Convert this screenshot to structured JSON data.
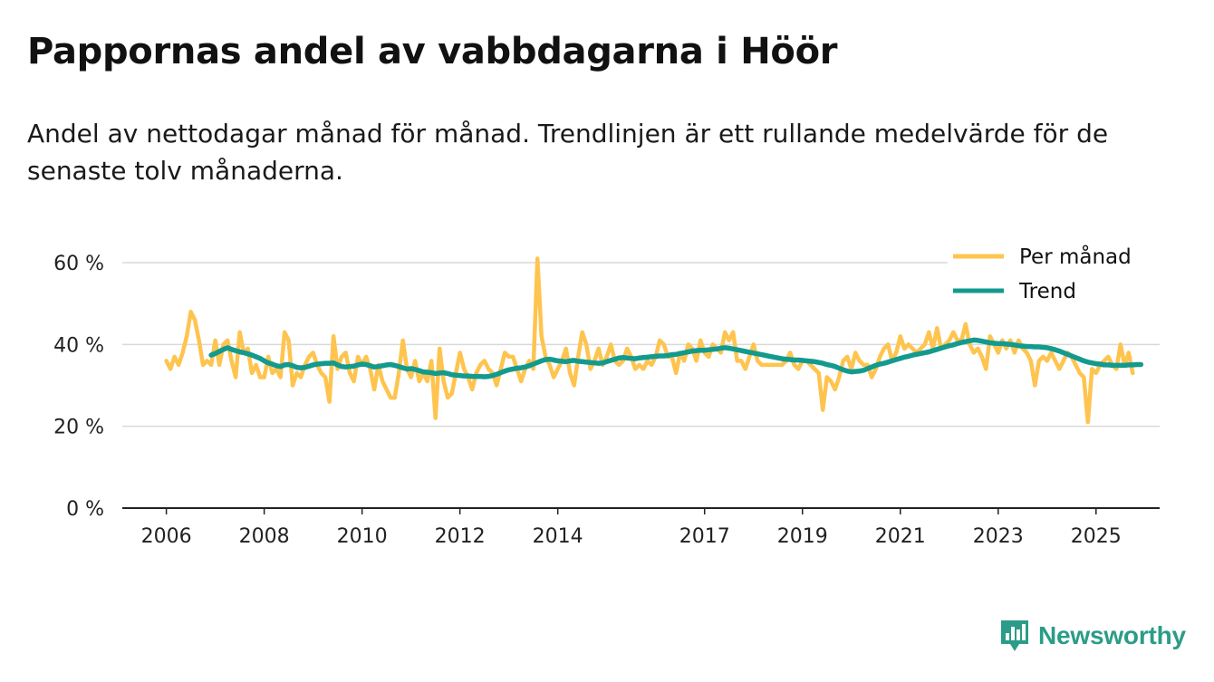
{
  "header": {
    "title": "Pappornas andel av vabbdagarna i Höör",
    "subtitle": "Andel av nettodagar månad för månad. Trendlinjen är ett rullande medelvärde för de senaste tolv månaderna."
  },
  "brand": {
    "name": "Newsworthy",
    "icon": "newsworthy-logo-icon",
    "color": "#2b9c87"
  },
  "colors": {
    "monthly": "#fec44f",
    "trend": "#139a8e",
    "grid": "#d9d9d9",
    "axis": "#222222"
  },
  "chart_data": {
    "type": "line",
    "title": "Pappornas andel av vabbdagarna i Höör",
    "xlabel": "",
    "ylabel": "",
    "x_start": "2006-01",
    "x_tick_years": [
      2006,
      2008,
      2010,
      2012,
      2014,
      2017,
      2019,
      2021,
      2023,
      2025
    ],
    "x_range": [
      2005.1,
      2026.3
    ],
    "ylim": [
      0,
      65
    ],
    "y_ticks": [
      0,
      20,
      40,
      60
    ],
    "y_tick_labels": [
      "0 %",
      "20 %",
      "40 %",
      "60 %"
    ],
    "grid": true,
    "legend": {
      "position": "top-right",
      "entries": [
        "Per månad",
        "Trend"
      ]
    },
    "series": [
      {
        "name": "Per månad",
        "values": [
          36,
          34,
          37,
          35,
          38,
          42,
          48,
          46,
          41,
          35,
          36,
          35,
          41,
          35,
          40,
          41,
          36,
          32,
          43,
          38,
          39,
          33,
          35,
          32,
          32,
          37,
          33,
          34,
          32,
          43,
          41,
          30,
          33,
          32,
          35,
          37,
          38,
          35,
          33,
          32,
          26,
          42,
          34,
          37,
          38,
          33,
          31,
          37,
          35,
          37,
          34,
          29,
          35,
          31,
          29,
          27,
          27,
          33,
          41,
          34,
          32,
          36,
          31,
          33,
          31,
          36,
          22,
          39,
          31,
          27,
          28,
          33,
          38,
          34,
          32,
          29,
          33,
          35,
          36,
          34,
          33,
          30,
          34,
          38,
          37,
          37,
          34,
          31,
          34,
          36,
          34,
          61,
          42,
          37,
          35,
          32,
          34,
          36,
          39,
          33,
          30,
          37,
          43,
          40,
          34,
          36,
          39,
          35,
          37,
          40,
          36,
          35,
          36,
          39,
          37,
          34,
          35,
          34,
          36,
          35,
          37,
          41,
          40,
          37,
          37,
          33,
          38,
          36,
          40,
          39,
          36,
          41,
          38,
          37,
          40,
          39,
          38,
          43,
          41,
          43,
          36,
          36,
          34,
          37,
          40,
          36,
          35,
          35,
          35,
          35,
          35,
          35,
          36,
          38,
          35,
          34,
          36,
          36,
          35,
          34,
          33,
          24,
          32,
          31,
          29,
          32,
          36,
          37,
          34,
          38,
          36,
          35,
          35,
          32,
          34,
          37,
          39,
          40,
          36,
          38,
          42,
          39,
          40,
          39,
          38,
          39,
          40,
          43,
          39,
          44,
          39,
          40,
          41,
          43,
          41,
          41,
          45,
          40,
          38,
          39,
          37,
          34,
          42,
          40,
          38,
          41,
          39,
          41,
          38,
          41,
          39,
          38,
          36,
          30,
          36,
          37,
          36,
          38,
          36,
          34,
          36,
          38,
          37,
          35,
          33,
          32,
          21,
          34,
          33,
          35,
          36,
          37,
          35,
          34,
          40,
          35,
          38,
          33
        ]
      },
      {
        "name": "Trend",
        "values": [
          null,
          null,
          null,
          null,
          null,
          null,
          null,
          null,
          null,
          null,
          null,
          37.4,
          37.8,
          38.3,
          38.8,
          39.2,
          38.8,
          38.5,
          38.2,
          38.0,
          37.7,
          37.4,
          37.0,
          36.6,
          36.0,
          35.5,
          35.2,
          34.8,
          34.6,
          35.0,
          35.1,
          34.8,
          34.4,
          34.3,
          34.4,
          34.7,
          35.0,
          35.2,
          35.3,
          35.4,
          35.4,
          35.5,
          35.0,
          34.6,
          34.5,
          34.6,
          34.7,
          35.0,
          35.2,
          35.1,
          34.8,
          34.5,
          34.6,
          34.8,
          35.0,
          35.1,
          34.9,
          34.6,
          34.3,
          34.0,
          34.1,
          33.9,
          33.6,
          33.3,
          33.2,
          33.1,
          32.9,
          33.0,
          33.1,
          32.9,
          32.6,
          32.5,
          32.4,
          32.3,
          32.3,
          32.2,
          32.2,
          32.2,
          32.1,
          32.2,
          32.4,
          32.7,
          33.1,
          33.5,
          33.8,
          34.0,
          34.2,
          34.3,
          34.5,
          34.8,
          35.2,
          35.6,
          36.0,
          36.3,
          36.4,
          36.2,
          36.0,
          35.9,
          35.8,
          36.0,
          36.1,
          35.9,
          35.8,
          35.7,
          35.6,
          35.5,
          35.4,
          35.5,
          35.8,
          36.1,
          36.4,
          36.7,
          36.8,
          36.7,
          36.6,
          36.5,
          36.7,
          36.8,
          36.9,
          37.0,
          37.1,
          37.2,
          37.2,
          37.3,
          37.5,
          37.6,
          37.8,
          38.0,
          38.2,
          38.4,
          38.5,
          38.6,
          38.6,
          38.7,
          38.8,
          38.9,
          39.1,
          39.2,
          39.1,
          38.9,
          38.7,
          38.5,
          38.3,
          38.1,
          37.9,
          37.7,
          37.5,
          37.3,
          37.1,
          36.9,
          36.7,
          36.5,
          36.4,
          36.3,
          36.2,
          36.2,
          36.1,
          36.0,
          35.9,
          35.8,
          35.6,
          35.4,
          35.1,
          34.9,
          34.6,
          34.2,
          33.8,
          33.5,
          33.3,
          33.4,
          33.5,
          33.7,
          34.1,
          34.5,
          34.9,
          35.2,
          35.4,
          35.7,
          36.0,
          36.3,
          36.6,
          36.9,
          37.1,
          37.4,
          37.6,
          37.8,
          38.0,
          38.2,
          38.5,
          38.8,
          39.1,
          39.4,
          39.7,
          39.9,
          40.2,
          40.5,
          40.7,
          40.9,
          41.1,
          41.0,
          40.8,
          40.6,
          40.4,
          40.3,
          40.2,
          40.2,
          40.1,
          40.0,
          39.9,
          39.7,
          39.6,
          39.5,
          39.5,
          39.4,
          39.4,
          39.3,
          39.2,
          39.0,
          38.7,
          38.4,
          38.0,
          37.6,
          37.2,
          36.8,
          36.4,
          36.0,
          35.7,
          35.5,
          35.3,
          35.2,
          35.0,
          35.0,
          34.9,
          34.9,
          34.9,
          34.9,
          35.0,
          35.0,
          35.1,
          35.1
        ]
      }
    ]
  }
}
